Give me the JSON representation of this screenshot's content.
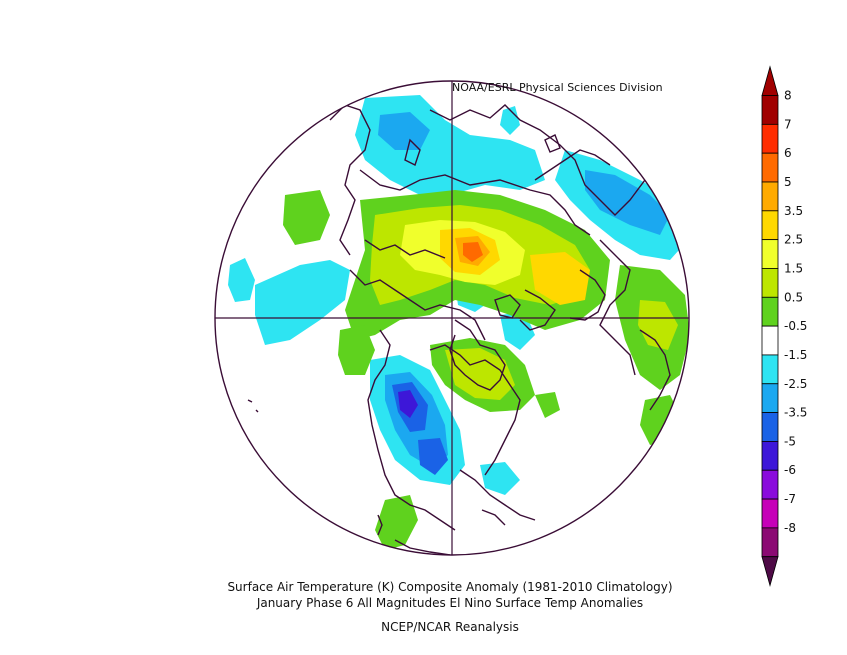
{
  "map": {
    "credit": "NOAA/ESRL Physical Sciences Division",
    "title_line1": "Surface Air Temperature (K) Composite Anomaly (1981-2010 Climatology)",
    "title_line2": "January Phase 6 All Magnitudes  El Nino Surface Temp Anomalies",
    "source": "NCEP/NCAR Reanalysis",
    "projection": "north-polar-stereographic",
    "map_colors": {
      "land_outline": "#3a0d36",
      "background": "#ffffff"
    }
  },
  "legend": {
    "levels": [
      {
        "label": "8",
        "color": "#a00000"
      },
      {
        "label": "7",
        "color": "#ff2d00"
      },
      {
        "label": "6",
        "color": "#ff6a00"
      },
      {
        "label": "5",
        "color": "#ffaa00"
      },
      {
        "label": "3.5",
        "color": "#ffd800"
      },
      {
        "label": "2.5",
        "color": "#f0ff2c"
      },
      {
        "label": "1.5",
        "color": "#bde600"
      },
      {
        "label": "0.5",
        "color": "#5fd21e"
      },
      {
        "label": "-0.5",
        "color": "#ffffff"
      },
      {
        "label": "-1.5",
        "color": "#2ee4f2"
      },
      {
        "label": "-2.5",
        "color": "#1ba8f0"
      },
      {
        "label": "-3.5",
        "color": "#1a62e6"
      },
      {
        "label": "-5",
        "color": "#3d17d8"
      },
      {
        "label": "-6",
        "color": "#8a0bdc"
      },
      {
        "label": "-7",
        "color": "#c600b8"
      },
      {
        "label": "-8",
        "color": "#8b0a73"
      }
    ],
    "low_end_color": "#4e0a46",
    "extends": "both"
  }
}
